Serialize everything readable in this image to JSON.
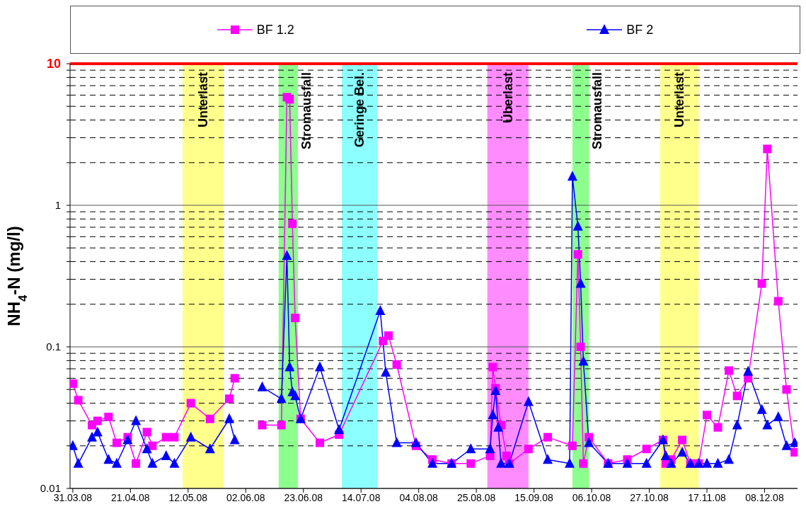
{
  "chart_data": {
    "type": "line",
    "ylabel": "NH$_{4}$-N (mg/l)",
    "log": true,
    "grid": "y",
    "legend": "top",
    "xlim": [
      "2008-03-30",
      "2008-12-20"
    ],
    "xticks": [
      {
        "value": "2008-03-31",
        "label": "31.03.08"
      },
      {
        "value": "2008-04-21",
        "label": "21.04.08"
      },
      {
        "value": "2008-05-12",
        "label": "12.05.08"
      },
      {
        "value": "2008-06-02",
        "label": "02.06.08"
      },
      {
        "value": "2008-06-23",
        "label": "23.06.08"
      },
      {
        "value": "2008-07-14",
        "label": "14.07.08"
      },
      {
        "value": "2008-08-04",
        "label": "04.08.08"
      },
      {
        "value": "2008-08-25",
        "label": "25.08.08"
      },
      {
        "value": "2008-09-15",
        "label": "15.09.08"
      },
      {
        "value": "2008-10-06",
        "label": "06.10.08"
      },
      {
        "value": "2008-10-27",
        "label": "27.10.08"
      },
      {
        "value": "2008-11-17",
        "label": "17.11.08"
      },
      {
        "value": "2008-12-08",
        "label": "08.12.08"
      }
    ],
    "ylim": [
      0.01,
      10
    ],
    "yticks": [
      0.01,
      {
        "value": 0.02,
        "label": null
      },
      {
        "value": 0.03,
        "label": null
      },
      {
        "value": 0.04,
        "label": null
      },
      {
        "value": 0.05,
        "label": null
      },
      {
        "value": 0.06,
        "label": null
      },
      {
        "value": 0.07,
        "label": null
      },
      {
        "value": 0.08,
        "label": null
      },
      {
        "value": 0.09,
        "label": null
      },
      0.1,
      {
        "value": 0.2,
        "label": null
      },
      {
        "value": 0.3,
        "label": null
      },
      {
        "value": 0.4,
        "label": null
      },
      {
        "value": 0.5,
        "label": null
      },
      {
        "value": 0.6,
        "label": null
      },
      {
        "value": 0.7,
        "label": null
      },
      {
        "value": 0.8,
        "label": null
      },
      {
        "value": 0.9,
        "label": null
      },
      1,
      {
        "value": 2,
        "label": null
      },
      {
        "value": 3,
        "label": null
      },
      {
        "value": 4,
        "label": null
      },
      {
        "value": 5,
        "label": null
      },
      {
        "value": 6,
        "label": null
      },
      {
        "value": 7,
        "label": null
      },
      {
        "value": 8,
        "label": null
      },
      {
        "value": 9,
        "label": null
      },
      10
    ],
    "ref_lines": [
      {
        "axis": "y",
        "value": 10,
        "color": "#ff0000"
      }
    ],
    "bands": [
      {
        "axis": "x",
        "from": "2008-05-10",
        "to": "2008-05-25",
        "label": "Unterlast",
        "color": "#ffff66"
      },
      {
        "axis": "x",
        "from": "2008-06-14",
        "to": "2008-06-21",
        "label": "Stromausfall",
        "color": "#66ff66"
      },
      {
        "axis": "x",
        "from": "2008-07-07",
        "to": "2008-07-20",
        "label": "Geringe Bel.",
        "color": "#66ffff"
      },
      {
        "axis": "x",
        "from": "2008-08-29",
        "to": "2008-09-13",
        "label": "Überlast",
        "color": "#ff66ff"
      },
      {
        "axis": "x",
        "from": "2008-09-29",
        "to": "2008-10-05",
        "label": "Stromausfall",
        "color": "#66ff66"
      },
      {
        "axis": "x",
        "from": "2008-10-31",
        "to": "2008-11-14",
        "label": "Unterlast",
        "color": "#ffff66"
      }
    ],
    "series": [
      {
        "name": "BF 1.2",
        "color": "#ff00ff",
        "marker": "square",
        "x": [
          "2008-03-31",
          "2008-04-02",
          "2008-04-07",
          "2008-04-09",
          "2008-04-13",
          "2008-04-16",
          "2008-04-20",
          "2008-04-23",
          "2008-04-27",
          "2008-04-29",
          "2008-05-04",
          "2008-05-07",
          "2008-05-13",
          "2008-05-20",
          "2008-05-27",
          "2008-05-29",
          "2008-06-03",
          "2008-06-08",
          "2008-06-15",
          "2008-06-17",
          "2008-06-18",
          "2008-06-19",
          "2008-06-20",
          "2008-06-22",
          "2008-06-29",
          "2008-07-06",
          "2008-07-22",
          "2008-07-24",
          "2008-07-27",
          "2008-08-03",
          "2008-08-09",
          "2008-08-16",
          "2008-08-23",
          "2008-08-30",
          "2008-08-31",
          "2008-09-01",
          "2008-09-03",
          "2008-09-05",
          "2008-09-06",
          "2008-09-13",
          "2008-09-20",
          "2008-09-29",
          "2008-10-01",
          "2008-10-02",
          "2008-10-03",
          "2008-10-05",
          "2008-10-12",
          "2008-10-19",
          "2008-10-26",
          "2008-11-01",
          "2008-11-02",
          "2008-11-04",
          "2008-11-08",
          "2008-11-11",
          "2008-11-14",
          "2008-11-17",
          "2008-11-21",
          "2008-11-25",
          "2008-11-28",
          "2008-12-02",
          "2008-12-07",
          "2008-12-09",
          "2008-12-13",
          "2008-12-16",
          "2008-12-19"
        ],
        "values": [
          0.055,
          0.042,
          0.028,
          0.03,
          0.032,
          0.021,
          0.023,
          0.015,
          0.025,
          0.02,
          0.023,
          0.023,
          0.04,
          0.031,
          0.043,
          0.06,
          null,
          0.028,
          0.028,
          5.8,
          5.6,
          0.74,
          0.16,
          0.031,
          0.021,
          0.024,
          0.11,
          0.12,
          0.075,
          0.02,
          0.016,
          0.015,
          0.015,
          0.017,
          0.072,
          0.051,
          0.028,
          0.017,
          0.015,
          0.019,
          0.023,
          0.02,
          0.45,
          0.1,
          0.015,
          0.023,
          0.015,
          0.016,
          0.019,
          0.022,
          0.015,
          0.016,
          0.022,
          0.015,
          0.015,
          0.033,
          0.027,
          0.068,
          0.045,
          0.06,
          0.28,
          2.5,
          0.21,
          0.05,
          0.018
        ]
      },
      {
        "name": "BF 2",
        "color": "#0000ff",
        "marker": "triangle",
        "x": [
          "2008-03-31",
          "2008-04-02",
          "2008-04-07",
          "2008-04-09",
          "2008-04-13",
          "2008-04-16",
          "2008-04-20",
          "2008-04-23",
          "2008-04-27",
          "2008-04-29",
          "2008-05-04",
          "2008-05-07",
          "2008-05-13",
          "2008-05-20",
          "2008-05-27",
          "2008-05-29",
          "2008-06-03",
          "2008-06-08",
          "2008-06-15",
          "2008-06-17",
          "2008-06-18",
          "2008-06-19",
          "2008-06-20",
          "2008-06-22",
          "2008-06-29",
          "2008-07-06",
          "2008-07-21",
          "2008-07-23",
          "2008-07-27",
          "2008-08-03",
          "2008-08-09",
          "2008-08-16",
          "2008-08-23",
          "2008-08-30",
          "2008-08-31",
          "2008-09-01",
          "2008-09-02",
          "2008-09-03",
          "2008-09-06",
          "2008-09-13",
          "2008-09-20",
          "2008-09-28",
          "2008-09-29",
          "2008-10-01",
          "2008-10-02",
          "2008-10-03",
          "2008-10-05",
          "2008-10-12",
          "2008-10-19",
          "2008-10-26",
          "2008-11-01",
          "2008-11-02",
          "2008-11-04",
          "2008-11-08",
          "2008-11-11",
          "2008-11-14",
          "2008-11-17",
          "2008-11-21",
          "2008-11-25",
          "2008-11-28",
          "2008-12-02",
          "2008-12-07",
          "2008-12-09",
          "2008-12-13",
          "2008-12-16",
          "2008-12-19"
        ],
        "values": [
          0.02,
          0.015,
          0.023,
          0.025,
          0.016,
          0.015,
          0.022,
          0.03,
          0.019,
          0.015,
          0.017,
          0.015,
          0.023,
          0.019,
          0.031,
          0.022,
          null,
          0.052,
          0.043,
          0.44,
          0.072,
          0.048,
          0.045,
          0.031,
          0.072,
          0.026,
          0.18,
          0.066,
          0.021,
          0.021,
          0.015,
          0.015,
          0.019,
          0.019,
          0.033,
          0.049,
          0.027,
          0.015,
          0.015,
          0.041,
          0.016,
          0.015,
          1.6,
          0.71,
          0.28,
          0.079,
          0.021,
          0.015,
          0.015,
          0.015,
          0.022,
          0.017,
          0.015,
          0.018,
          0.015,
          0.015,
          0.015,
          0.015,
          0.016,
          0.028,
          0.067,
          0.036,
          0.028,
          0.032,
          0.02,
          0.021
        ]
      }
    ]
  }
}
